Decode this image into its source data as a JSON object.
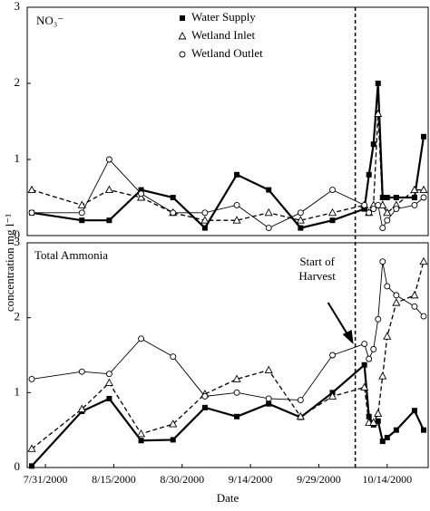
{
  "chart_data": [
    {
      "type": "line",
      "title": "NO₃⁻",
      "ylabel": "concentration mg l⁻¹",
      "legend": "top-center",
      "x": [
        "7/28/2000",
        "8/8/2000",
        "8/14/2000",
        "8/21/2000",
        "8/28/2000",
        "9/4/2000",
        "9/11/2000",
        "9/18/2000",
        "9/25/2000",
        "10/2/2000",
        "10/9/2000",
        "10/10/2000",
        "10/11/2000",
        "10/12/2000",
        "10/13/2000",
        "10/14/2000",
        "10/16/2000",
        "10/20/2000",
        "10/22/2000"
      ],
      "xlim": [
        "7/27/2000",
        "10/23/2000"
      ],
      "ylim": [
        0,
        3
      ],
      "yticks": [
        0,
        1,
        2,
        3
      ],
      "series": [
        {
          "name": "Water Supply",
          "color": "#000000",
          "marker": "square",
          "linestyle": "solid-bold",
          "values": [
            0.3,
            0.2,
            0.2,
            0.6,
            0.5,
            0.1,
            0.8,
            0.6,
            0.1,
            0.2,
            0.35,
            0.8,
            1.2,
            2.0,
            0.5,
            0.5,
            0.5,
            0.5,
            1.3
          ]
        },
        {
          "name": "Wetland Inlet",
          "color": "#000000",
          "marker": "triangle",
          "linestyle": "dashed",
          "values": [
            0.6,
            0.4,
            0.6,
            0.5,
            0.3,
            0.2,
            0.2,
            0.3,
            0.2,
            0.3,
            0.4,
            0.3,
            0.4,
            1.6,
            0.4,
            0.3,
            0.4,
            0.6,
            0.6
          ]
        },
        {
          "name": "Wetland Outlet",
          "color": "#000000",
          "marker": "circle",
          "linestyle": "solid-thin",
          "values": [
            0.3,
            0.3,
            1.0,
            0.55,
            0.3,
            0.3,
            0.4,
            0.1,
            0.3,
            0.6,
            0.4,
            0.3,
            0.35,
            0.4,
            0.1,
            0.2,
            0.35,
            0.4,
            0.5
          ]
        }
      ]
    },
    {
      "type": "line",
      "title": "Total Ammonia",
      "xlabel": "Date",
      "x": [
        "7/28/2000",
        "8/8/2000",
        "8/14/2000",
        "8/21/2000",
        "8/28/2000",
        "9/4/2000",
        "9/11/2000",
        "9/18/2000",
        "9/25/2000",
        "10/2/2000",
        "10/9/2000",
        "10/10/2000",
        "10/11/2000",
        "10/12/2000",
        "10/13/2000",
        "10/14/2000",
        "10/16/2000",
        "10/20/2000",
        "10/22/2000"
      ],
      "xlim": [
        "7/27/2000",
        "10/23/2000"
      ],
      "xticks": [
        "7/31/2000",
        "8/15/2000",
        "8/30/2000",
        "9/14/2000",
        "9/29/2000",
        "10/14/2000"
      ],
      "ylim": [
        0,
        3
      ],
      "yticks": [
        0,
        1,
        2,
        3
      ],
      "annotations": [
        {
          "text": [
            "Start of",
            "Harvest"
          ],
          "x": "10/7/2000"
        }
      ],
      "series": [
        {
          "name": "Water Supply",
          "color": "#000000",
          "marker": "square",
          "linestyle": "solid-bold",
          "values": [
            0.02,
            0.75,
            0.92,
            0.36,
            0.37,
            0.8,
            0.68,
            0.85,
            0.67,
            1.0,
            1.37,
            0.68,
            0.57,
            0.62,
            0.35,
            0.4,
            0.5,
            0.76,
            0.5
          ]
        },
        {
          "name": "Wetland Inlet",
          "color": "#000000",
          "marker": "triangle",
          "linestyle": "dashed",
          "values": [
            0.25,
            0.78,
            1.13,
            0.45,
            0.58,
            0.98,
            1.18,
            1.3,
            0.68,
            0.95,
            1.07,
            0.6,
            0.6,
            0.72,
            1.22,
            1.75,
            2.2,
            2.3,
            2.75
          ]
        },
        {
          "name": "Wetland Outlet",
          "color": "#000000",
          "marker": "circle",
          "linestyle": "solid-thin",
          "values": [
            1.18,
            1.28,
            1.25,
            1.72,
            1.48,
            0.95,
            1.0,
            0.92,
            0.9,
            1.5,
            1.65,
            1.45,
            1.58,
            1.98,
            2.75,
            2.42,
            2.3,
            2.15,
            2.02
          ]
        }
      ]
    }
  ]
}
